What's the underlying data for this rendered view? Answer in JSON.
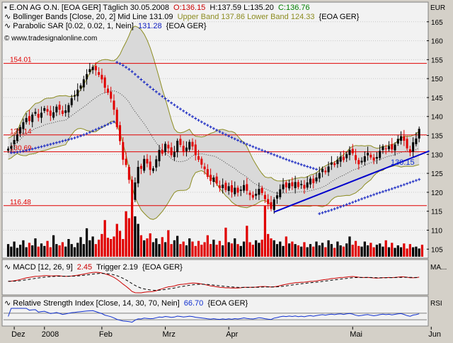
{
  "header": {
    "line1_name": "E.ON AG O.N. [EOA GER] Täglich 30.05.2008",
    "line1_open": "O:136.15",
    "line1_hlc": "H:137.59 L:135.20",
    "line1_close": "C:136.76",
    "line2_name": "Bollinger Bands [Close, 20, 2] Mid Line 131.09",
    "line2_bands": "Upper Band 137.86 Lower Band 124.33",
    "line2_tag": "{EOA GER}",
    "line3_name": "Parabolic SAR [0.02, 0.02, 1, Nein]",
    "line3_value": "131.28",
    "line3_tag": "{EOA GER}",
    "watermark": "© www.tradesignalonline.com"
  },
  "colors": {
    "price_up": "#000000",
    "price_down": "#e00000",
    "sar": "#1020c0",
    "band_fill": "#d9d9d9",
    "band_line": "#8c8c20",
    "level_line": "#e00000",
    "trendline": "#0000cc",
    "open_text": "#cc0000",
    "close_text": "#008000",
    "band_text": "#8c8c20",
    "macd_line": "#cc0000",
    "rsi_line": "#1030d0"
  },
  "chart_data": {
    "type": "candlestick",
    "currency": "EUR",
    "ylim": [
      103,
      170
    ],
    "yticks": [
      105,
      110,
      115,
      120,
      125,
      130,
      135,
      140,
      145,
      150,
      155,
      160,
      165
    ],
    "xlabels": [
      "Dez",
      "2008",
      "Feb",
      "Mrz",
      "Apr",
      "Mai",
      "Jun"
    ],
    "levels": [
      {
        "value": 154.01,
        "label": "154.01"
      },
      {
        "value": 135.14,
        "label": "135.14"
      },
      {
        "value": 130.69,
        "label": "130.69"
      },
      {
        "value": 116.48,
        "label": "116.48"
      }
    ],
    "trendline": {
      "from": [
        88,
        114.8
      ],
      "to": [
        137,
        130.3
      ]
    },
    "trendline_label": "130.15",
    "last_close": 136.76,
    "closes": [
      131.5,
      132.2,
      133.8,
      135.3,
      137.2,
      138.5,
      139.6,
      138.8,
      140.5,
      141.2,
      139.7,
      141.0,
      142.2,
      141.3,
      140.2,
      141.1,
      142.6,
      141.8,
      140.7,
      141.6,
      143.0,
      144.8,
      145.6,
      147.1,
      148.2,
      149.8,
      151.2,
      152.5,
      153.1,
      152.2,
      151.0,
      149.8,
      147.6,
      146.3,
      144.7,
      141.8,
      137.2,
      133.5,
      128.6,
      127.2,
      123.3,
      117.5,
      122.6,
      126.7,
      126.2,
      128.8,
      127.6,
      125.9,
      126.3,
      128.7,
      131.2,
      130.2,
      132.8,
      131.6,
      129.8,
      130.6,
      133.6,
      132.5,
      130.6,
      131.8,
      133.3,
      132.1,
      129.8,
      128.6,
      127.3,
      126.1,
      124.1,
      123.0,
      123.9,
      122.3,
      121.1,
      122.0,
      120.6,
      121.6,
      120.0,
      121.2,
      119.9,
      120.7,
      121.9,
      120.4,
      119.3,
      118.6,
      119.6,
      120.9,
      119.8,
      118.2,
      116.9,
      115.6,
      118.1,
      119.2,
      120.8,
      122.1,
      121.3,
      122.4,
      121.6,
      122.7,
      121.4,
      122.2,
      121.0,
      122.6,
      123.6,
      122.4,
      123.9,
      125.1,
      126.2,
      125.3,
      126.8,
      127.9,
      127.2,
      128.6,
      129.4,
      128.5,
      130.1,
      131.2,
      130.3,
      128.5,
      127.4,
      128.3,
      129.5,
      130.4,
      129.2,
      128.4,
      129.3,
      130.9,
      132.1,
      131.4,
      132.2,
      131.3,
      132.6,
      134.1,
      134.8,
      133.6,
      131.6,
      130.5,
      133.2,
      134.2,
      136.76
    ],
    "volumes": [
      2.0,
      1.6,
      2.4,
      1.4,
      1.9,
      2.6,
      1.5,
      2.2,
      1.8,
      2.9,
      1.6,
      2.1,
      1.7,
      2.5,
      1.5,
      3.4,
      2.0,
      1.8,
      2.3,
      1.6,
      2.8,
      2.0,
      1.5,
      2.2,
      3.1,
      2.0,
      4.5,
      2.6,
      3.2,
      2.0,
      2.7,
      3.6,
      5.8,
      3.0,
      2.8,
      3.2,
      5.2,
      4.1,
      2.8,
      7.2,
      6.1,
      8.7,
      6.4,
      5.2,
      3.4,
      2.6,
      2.9,
      3.7,
      2.3,
      2.9,
      2.0,
      3.1,
      2.3,
      4.2,
      2.0,
      2.6,
      3.3,
      2.0,
      2.4,
      1.8,
      2.9,
      2.4,
      1.7,
      2.5,
      1.9,
      2.3,
      3.4,
      2.0,
      2.7,
      1.9,
      2.5,
      1.8,
      4.6,
      2.3,
      2.1,
      2.9,
      2.0,
      1.7,
      2.4,
      4.9,
      2.3,
      1.9,
      2.6,
      2.2,
      2.7,
      8.1,
      3.6,
      2.9,
      2.6,
      2.0,
      2.4,
      1.7,
      3.2,
      2.1,
      2.4,
      2.0,
      1.8,
      1.6,
      2.3,
      1.5,
      2.0,
      1.6,
      2.4,
      1.8,
      2.2,
      1.5,
      2.6,
      2.0,
      1.4,
      2.4,
      1.8,
      1.6,
      2.1,
      3.2,
      1.9,
      2.5,
      1.7,
      1.6,
      2.4,
      1.8,
      2.2,
      1.5,
      1.9,
      2.1,
      1.6,
      2.6,
      1.5,
      2.2,
      1.4,
      1.8,
      1.5,
      2.1,
      1.3,
      2.0,
      1.5,
      1.6,
      1.3,
      1.9
    ],
    "volume_scale": [
      110,
      105
    ]
  },
  "macd": {
    "label": "MACD [12, 26, 9]",
    "value": "2.45",
    "trigger_label": "Trigger 2.19",
    "tag": "{EOA GER}",
    "axis_label": "MA..."
  },
  "rsi": {
    "label": "Relative Strength Index [Close, 14, 30, 70, Nein]",
    "value": "66.70",
    "tag": "{EOA GER}",
    "axis_label": "RSI"
  }
}
